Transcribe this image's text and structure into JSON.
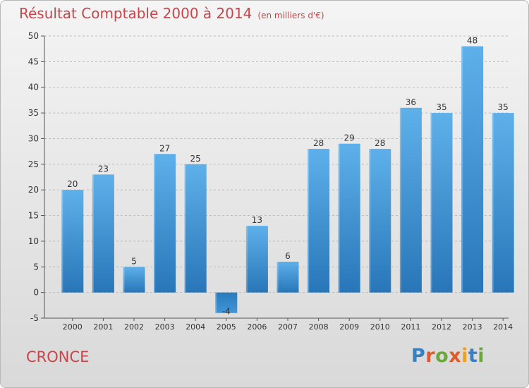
{
  "page": {
    "title": "Résultat Comptable 2000 à 2014",
    "subtitle": "(en milliers d'€)",
    "commune": "CRONCE",
    "brand": "Proxiti"
  },
  "colors": {
    "title": "#c8464a",
    "bar_top": "#5eb0ea",
    "bar_bottom": "#2876b8",
    "axis": "#555555",
    "grid": "#bdbdbd",
    "logo": [
      "#3a7fc1",
      "#e05a2a",
      "#6aa83a",
      "#e05a2a",
      "#f0a020",
      "#3a7fc1",
      "#6aa83a"
    ]
  },
  "chart_data": {
    "type": "bar",
    "categories": [
      "2000",
      "2001",
      "2002",
      "2003",
      "2004",
      "2005",
      "2006",
      "2007",
      "2008",
      "2009",
      "2010",
      "2011",
      "2012",
      "2013",
      "2014"
    ],
    "values": [
      20,
      23,
      5,
      27,
      25,
      -4,
      13,
      6,
      28,
      29,
      28,
      36,
      35,
      48,
      35
    ],
    "title": "Résultat Comptable 2000 à 2014",
    "xlabel": "",
    "ylabel": "",
    "ylim": [
      -5,
      50
    ],
    "yticks": [
      -5,
      0,
      5,
      10,
      15,
      20,
      25,
      30,
      35,
      40,
      45,
      50
    ],
    "grid": true,
    "legend": "none"
  }
}
